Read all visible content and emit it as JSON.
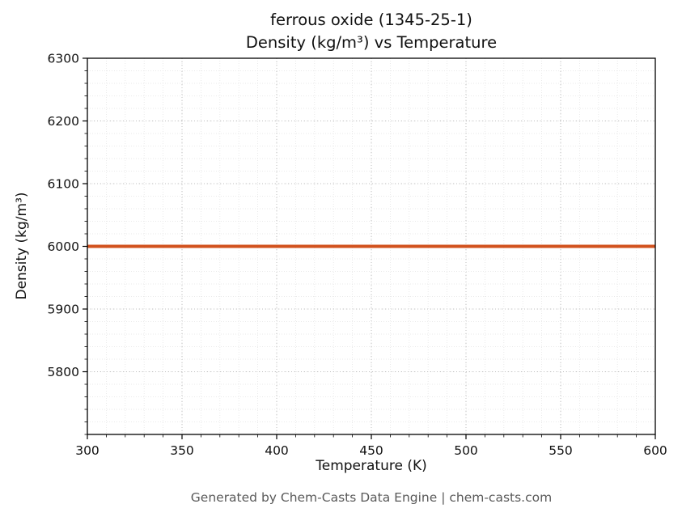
{
  "footer_credit": "Generated by Chem-Casts Data Engine | chem-casts.com",
  "chart_data": {
    "type": "line",
    "title": "ferrous oxide (1345-25-1)\nDensity (kg/m³) vs Temperature",
    "title_lines": [
      "ferrous oxide (1345-25-1)",
      "Density (kg/m³) vs Temperature"
    ],
    "xlabel": "Temperature (K)",
    "ylabel": "Density (kg/m³)",
    "xlim": [
      300,
      600
    ],
    "ylim": [
      5700,
      6300
    ],
    "xticks": [
      300,
      350,
      400,
      450,
      500,
      550,
      600
    ],
    "yticks": [
      5800,
      5900,
      6000,
      6100,
      6200,
      6300
    ],
    "grid": true,
    "minor_grid": true,
    "legend": false,
    "series": [
      {
        "name": "Density",
        "x": [
          300,
          600
        ],
        "y": [
          6000,
          6000
        ],
        "color": "#d2521e",
        "linewidth": 4
      }
    ]
  }
}
